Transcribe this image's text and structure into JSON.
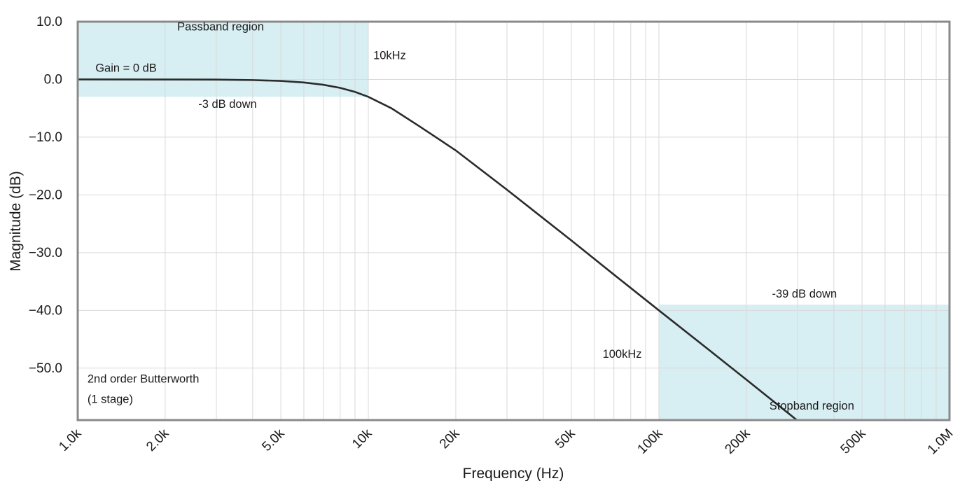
{
  "chart_data": {
    "type": "line",
    "xlabel": "Frequency (Hz)",
    "ylabel": "Magnitude (dB)",
    "x_scale": "log",
    "xlim": [
      1000,
      1000000
    ],
    "ylim": [
      -59,
      10
    ],
    "grid": true,
    "x_ticks": [
      {
        "value": 1000,
        "label": "1.0k"
      },
      {
        "value": 2000,
        "label": "2.0k"
      },
      {
        "value": 5000,
        "label": "5.0k"
      },
      {
        "value": 10000,
        "label": "10k"
      },
      {
        "value": 20000,
        "label": "20k"
      },
      {
        "value": 50000,
        "label": "50k"
      },
      {
        "value": 100000,
        "label": "100k"
      },
      {
        "value": 200000,
        "label": "200k"
      },
      {
        "value": 500000,
        "label": "500k"
      },
      {
        "value": 1000000,
        "label": "1.0M"
      }
    ],
    "y_ticks": [
      {
        "value": 10,
        "label": "10.0"
      },
      {
        "value": 0,
        "label": "0.0"
      },
      {
        "value": -10,
        "label": "−10.0"
      },
      {
        "value": -20,
        "label": "−20.0"
      },
      {
        "value": -30,
        "label": "−30.0"
      },
      {
        "value": -40,
        "label": "−40.0"
      },
      {
        "value": -50,
        "label": "−50.0"
      }
    ],
    "series": [
      {
        "color": "#2b2b2b",
        "x": [
          1000,
          2000,
          3000,
          4000,
          5000,
          6000,
          7000,
          8000,
          9000,
          10000,
          12000,
          15000,
          20000,
          30000,
          50000,
          70000,
          100000,
          150000,
          200000,
          300000
        ],
        "y": [
          0.0,
          -0.01,
          -0.03,
          -0.11,
          -0.26,
          -0.53,
          -0.92,
          -1.46,
          -2.16,
          -3.01,
          -4.98,
          -8.12,
          -12.3,
          -19.1,
          -27.9,
          -33.8,
          -40.0,
          -47.0,
          -52.0,
          -59.1
        ]
      }
    ],
    "regions": [
      {
        "name": "Passband region",
        "x": [
          1000,
          10000
        ],
        "y": [
          -3,
          10
        ],
        "color": "#d7eef2"
      },
      {
        "name": "Stopband region",
        "x": [
          100000,
          1000000
        ],
        "y": [
          -59,
          -39
        ],
        "color": "#d7eef2"
      }
    ],
    "annotations": [
      {
        "text": "Passband region",
        "x": 2200,
        "y": 8.5
      },
      {
        "text": "Gain = 0 dB",
        "x": 1150,
        "y": 1.3
      },
      {
        "text": "-3 dB down",
        "x": 2600,
        "y": -4.9
      },
      {
        "text": "10kHz",
        "x": 10400,
        "y": 3.5
      },
      {
        "text": "-39 dB down",
        "x": 245000,
        "y": -37.8
      },
      {
        "text": "100kHz",
        "x": 64000,
        "y": -48.2
      },
      {
        "text": "Stopband region",
        "x": 240000,
        "y": -57.2
      },
      {
        "text": "2nd order Butterworth",
        "x": 1080,
        "y": -52.5
      },
      {
        "text": "(1 stage)",
        "x": 1080,
        "y": -56.0
      }
    ]
  }
}
